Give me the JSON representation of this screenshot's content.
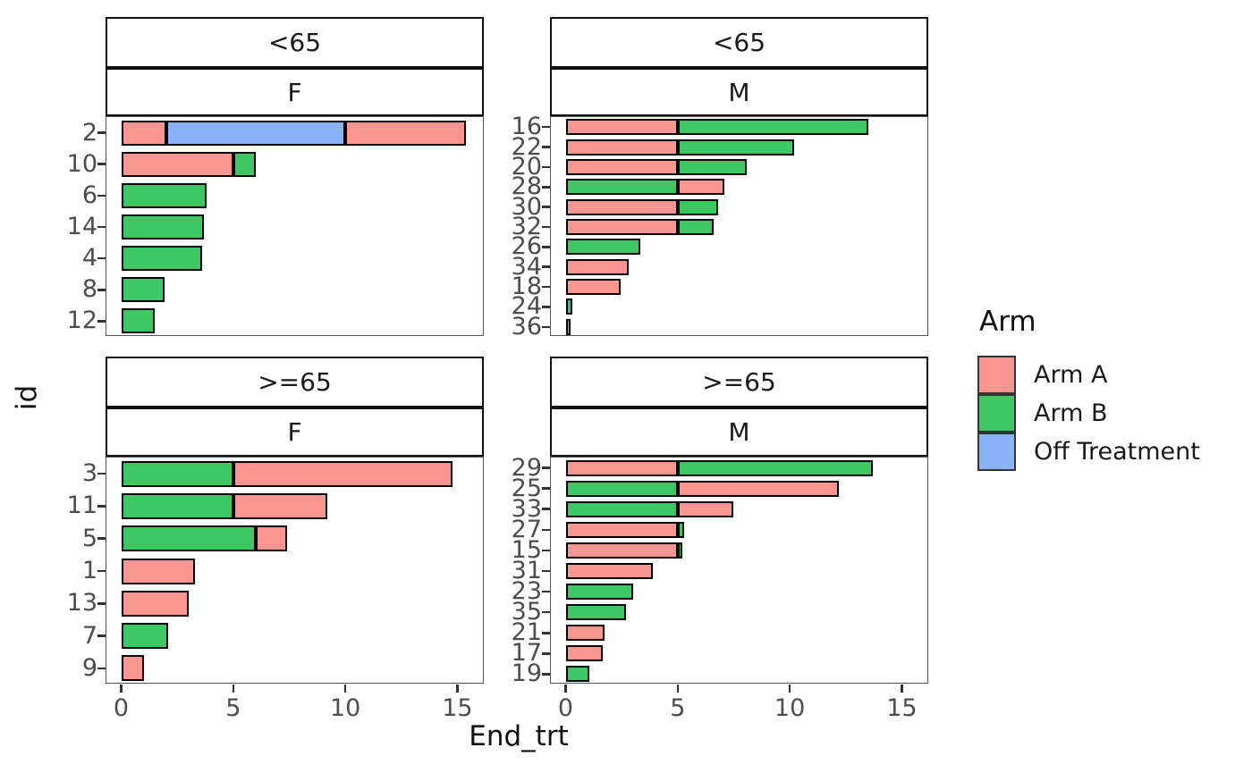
{
  "figure": {
    "xlabel": "End_trt",
    "ylabel": "id",
    "x_ticks": [
      0,
      5,
      10,
      15
    ],
    "x_domain": [
      -0.75,
      16.15
    ]
  },
  "legend": {
    "title": "Arm",
    "entries": [
      {
        "label": "Arm A",
        "color": "#F99590"
      },
      {
        "label": "Arm B",
        "color": "#3DC863"
      },
      {
        "label": "Off Treatment",
        "color": "#8AB2FA"
      }
    ]
  },
  "chart_data": {
    "type": "bar",
    "orientation": "horizontal",
    "stacked": true,
    "grid": false,
    "legend_position": "right",
    "facet_rows": [
      "<65",
      ">=65"
    ],
    "facet_cols": [
      "F",
      "M"
    ],
    "panels": [
      {
        "age": "<65",
        "sex": "F",
        "rows": [
          {
            "id": "2",
            "segments": [
              {
                "arm": "Arm A",
                "value": 2.0
              },
              {
                "arm": "Off Treatment",
                "value": 8.0
              },
              {
                "arm": "Arm A",
                "value": 5.4
              }
            ]
          },
          {
            "id": "10",
            "segments": [
              {
                "arm": "Arm A",
                "value": 5.0
              },
              {
                "arm": "Arm B",
                "value": 1.0
              }
            ]
          },
          {
            "id": "6",
            "segments": [
              {
                "arm": "Arm B",
                "value": 3.8
              }
            ]
          },
          {
            "id": "14",
            "segments": [
              {
                "arm": "Arm B",
                "value": 3.7
              }
            ]
          },
          {
            "id": "4",
            "segments": [
              {
                "arm": "Arm B",
                "value": 3.6
              }
            ]
          },
          {
            "id": "8",
            "segments": [
              {
                "arm": "Arm B",
                "value": 1.95
              }
            ]
          },
          {
            "id": "12",
            "segments": [
              {
                "arm": "Arm B",
                "value": 1.5
              }
            ]
          }
        ]
      },
      {
        "age": "<65",
        "sex": "M",
        "rows": [
          {
            "id": "16",
            "segments": [
              {
                "arm": "Arm A",
                "value": 5.0
              },
              {
                "arm": "Arm B",
                "value": 8.5
              }
            ]
          },
          {
            "id": "22",
            "segments": [
              {
                "arm": "Arm A",
                "value": 5.0
              },
              {
                "arm": "Arm B",
                "value": 5.2
              }
            ]
          },
          {
            "id": "20",
            "segments": [
              {
                "arm": "Arm A",
                "value": 5.0
              },
              {
                "arm": "Arm B",
                "value": 3.1
              }
            ]
          },
          {
            "id": "28",
            "segments": [
              {
                "arm": "Arm B",
                "value": 5.0
              },
              {
                "arm": "Arm A",
                "value": 2.1
              }
            ]
          },
          {
            "id": "30",
            "segments": [
              {
                "arm": "Arm A",
                "value": 5.0
              },
              {
                "arm": "Arm B",
                "value": 1.8
              }
            ]
          },
          {
            "id": "32",
            "segments": [
              {
                "arm": "Arm A",
                "value": 5.0
              },
              {
                "arm": "Arm B",
                "value": 1.6
              }
            ]
          },
          {
            "id": "26",
            "segments": [
              {
                "arm": "Arm B",
                "value": 3.35
              }
            ]
          },
          {
            "id": "34",
            "segments": [
              {
                "arm": "Arm A",
                "value": 2.8
              }
            ]
          },
          {
            "id": "18",
            "segments": [
              {
                "arm": "Arm A",
                "value": 2.45
              }
            ]
          },
          {
            "id": "24",
            "segments": [
              {
                "arm": "Arm B",
                "value": 0.3
              }
            ]
          },
          {
            "id": "36",
            "segments": [
              {
                "arm": "Arm A",
                "value": 0.2
              }
            ]
          }
        ]
      },
      {
        "age": ">=65",
        "sex": "F",
        "rows": [
          {
            "id": "3",
            "segments": [
              {
                "arm": "Arm B",
                "value": 5.0
              },
              {
                "arm": "Arm A",
                "value": 9.8
              }
            ]
          },
          {
            "id": "11",
            "segments": [
              {
                "arm": "Arm B",
                "value": 5.0
              },
              {
                "arm": "Arm A",
                "value": 4.2
              }
            ]
          },
          {
            "id": "5",
            "segments": [
              {
                "arm": "Arm B",
                "value": 6.0
              },
              {
                "arm": "Arm A",
                "value": 1.4
              }
            ]
          },
          {
            "id": "1",
            "segments": [
              {
                "arm": "Arm A",
                "value": 3.3
              }
            ]
          },
          {
            "id": "13",
            "segments": [
              {
                "arm": "Arm A",
                "value": 3.0
              }
            ]
          },
          {
            "id": "7",
            "segments": [
              {
                "arm": "Arm B",
                "value": 2.1
              }
            ]
          },
          {
            "id": "9",
            "segments": [
              {
                "arm": "Arm A",
                "value": 1.0
              }
            ]
          }
        ]
      },
      {
        "age": ">=65",
        "sex": "M",
        "rows": [
          {
            "id": "29",
            "segments": [
              {
                "arm": "Arm A",
                "value": 5.0
              },
              {
                "arm": "Arm B",
                "value": 8.7
              }
            ]
          },
          {
            "id": "25",
            "segments": [
              {
                "arm": "Arm B",
                "value": 5.0
              },
              {
                "arm": "Arm A",
                "value": 7.2
              }
            ]
          },
          {
            "id": "33",
            "segments": [
              {
                "arm": "Arm B",
                "value": 5.0
              },
              {
                "arm": "Arm A",
                "value": 2.5
              }
            ]
          },
          {
            "id": "27",
            "segments": [
              {
                "arm": "Arm A",
                "value": 5.0
              },
              {
                "arm": "Arm B",
                "value": 0.3
              }
            ]
          },
          {
            "id": "15",
            "segments": [
              {
                "arm": "Arm A",
                "value": 5.0
              },
              {
                "arm": "Arm B",
                "value": 0.2
              }
            ]
          },
          {
            "id": "31",
            "segments": [
              {
                "arm": "Arm A",
                "value": 3.9
              }
            ]
          },
          {
            "id": "23",
            "segments": [
              {
                "arm": "Arm B",
                "value": 3.0
              }
            ]
          },
          {
            "id": "35",
            "segments": [
              {
                "arm": "Arm B",
                "value": 2.7
              }
            ]
          },
          {
            "id": "21",
            "segments": [
              {
                "arm": "Arm A",
                "value": 1.75
              }
            ]
          },
          {
            "id": "17",
            "segments": [
              {
                "arm": "Arm A",
                "value": 1.65
              }
            ]
          },
          {
            "id": "19",
            "segments": [
              {
                "arm": "Arm B",
                "value": 1.05
              }
            ]
          }
        ]
      }
    ]
  }
}
